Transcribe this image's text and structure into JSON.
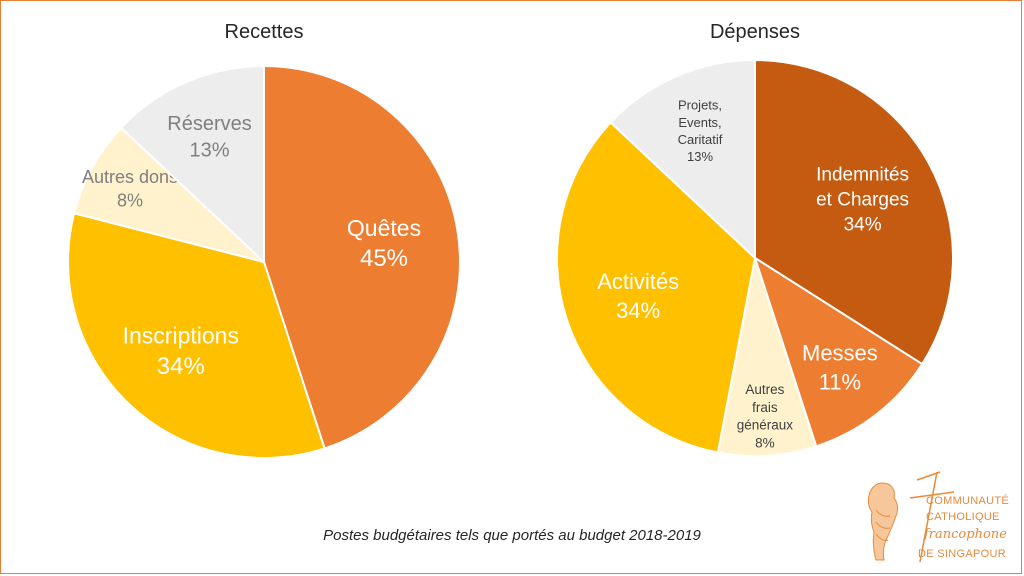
{
  "chart_data": [
    {
      "type": "pie",
      "title": "Recettes",
      "slices": [
        {
          "label": [
            "Quêtes"
          ],
          "percent_label": "45%",
          "value": 45,
          "color": "#ed7d31",
          "text_color": "#ffffff"
        },
        {
          "label": [
            "Inscriptions"
          ],
          "percent_label": "34%",
          "value": 34,
          "color": "#ffc000",
          "text_color": "#ffffff"
        },
        {
          "label": [
            "Autres dons"
          ],
          "percent_label": "8%",
          "value": 8,
          "color": "#fff2cc",
          "text_color": "#7f7f7f"
        },
        {
          "label": [
            "Réserves"
          ],
          "percent_label": "13%",
          "value": 13,
          "color": "#ededed",
          "text_color": "#7f7f7f"
        }
      ]
    },
    {
      "type": "pie",
      "title": "Dépenses",
      "slices": [
        {
          "label": [
            "Indemnités",
            "et Charges"
          ],
          "percent_label": "34%",
          "value": 34,
          "color": "#c55a11",
          "text_color": "#ffffff"
        },
        {
          "label": [
            "Messes"
          ],
          "percent_label": "11%",
          "value": 11,
          "color": "#ed7d31",
          "text_color": "#ffffff"
        },
        {
          "label": [
            "Autres",
            "frais",
            "généraux"
          ],
          "percent_label": "8%",
          "value": 8,
          "color": "#fff2cc",
          "text_color": "#404040"
        },
        {
          "label": [
            "Activités"
          ],
          "percent_label": "34%",
          "value": 34,
          "color": "#ffc000",
          "text_color": "#ffffff"
        },
        {
          "label": [
            "Projets,",
            "Events,",
            "Caritatif"
          ],
          "percent_label": "13%",
          "value": 13,
          "color": "#ededed",
          "text_color": "#404040"
        }
      ]
    }
  ],
  "caption": "Postes budgétaires tels que portés au budget 2018-2019",
  "logo": {
    "line1": "COMMUNAUTÉ",
    "line2": "CATHOLIQUE",
    "line3": "francophone",
    "line4": "DE SINGAPOUR",
    "color": "#e8893b"
  }
}
